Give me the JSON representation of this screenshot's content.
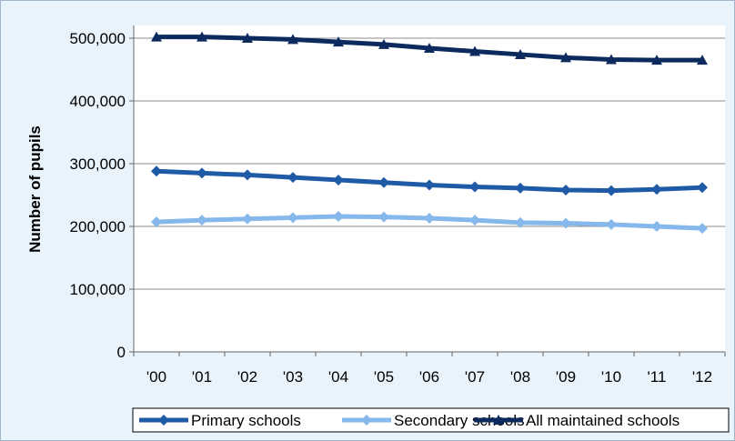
{
  "chart_data": {
    "type": "line",
    "title": "",
    "xlabel": "",
    "ylabel": "Number of pupils",
    "categories": [
      "'00",
      "'01",
      "'02",
      "'03",
      "'04",
      "'05",
      "'06",
      "'07",
      "'08",
      "'09",
      "'10",
      "'11",
      "'12"
    ],
    "ylim": [
      0,
      500000
    ],
    "yticks": [
      "0",
      "100,000",
      "200,000",
      "300,000",
      "400,000",
      "500,000"
    ],
    "grid": true,
    "legend_position": "bottom",
    "series": [
      {
        "name": "Primary schools",
        "color": "#1f5aa6",
        "marker": "diamond",
        "values": [
          288000,
          285000,
          282000,
          278000,
          274000,
          270000,
          266000,
          263000,
          261000,
          258000,
          257000,
          259000,
          262000
        ]
      },
      {
        "name": "Secondary schools",
        "color": "#86b8ec",
        "marker": "diamond",
        "values": [
          207000,
          210000,
          212000,
          214000,
          216000,
          215000,
          213000,
          210000,
          206000,
          205000,
          203000,
          200000,
          197000
        ]
      },
      {
        "name": "All maintained schools",
        "color": "#0c2a5e",
        "marker": "triangle",
        "values": [
          502000,
          502000,
          500000,
          498000,
          494000,
          490000,
          484000,
          479000,
          474000,
          469000,
          466000,
          465000,
          465000
        ]
      }
    ]
  }
}
